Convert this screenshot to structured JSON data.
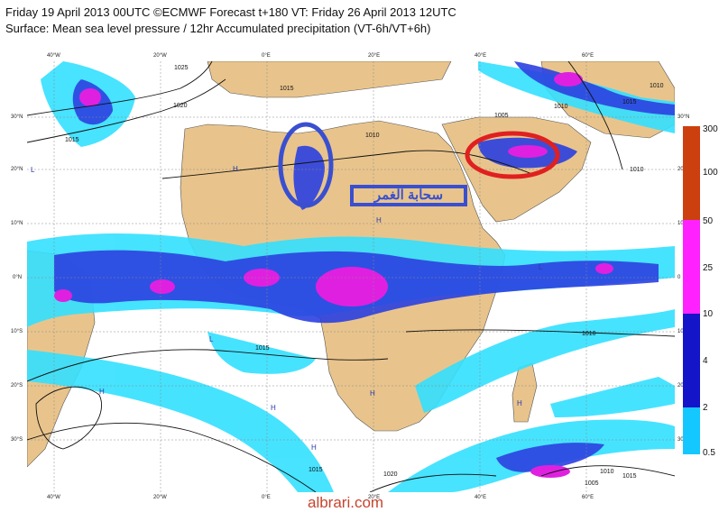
{
  "header": {
    "line1": "Friday 19 April 2013 00UTC ©ECMWF Forecast t+180 VT: Friday 26 April 2013 12UTC",
    "line2": "Surface: Mean sea level pressure / 12hr Accumulated precipitation (VT-6h/VT+6h)"
  },
  "lon_top": [
    "40°W",
    "20°W",
    "0°E",
    "20°E",
    "40°E",
    "60°E"
  ],
  "lon_bottom": [
    "40°W",
    "20°W",
    "0°E",
    "20°E",
    "40°E",
    "60°E"
  ],
  "lat_left": [
    "30°N",
    "20°N",
    "10°N",
    "0°N",
    "10°S",
    "20°S",
    "30°S"
  ],
  "lat_right": [
    "30°N",
    "20",
    "10",
    "0",
    "10",
    "20",
    "30"
  ],
  "isobars": [
    "1025",
    "1020",
    "1015",
    "1015",
    "1010",
    "1010",
    "1005",
    "1010",
    "1015",
    "1010",
    "1010",
    "1015",
    "1015",
    "1020",
    "1010",
    "1005",
    "1015"
  ],
  "highs_lows": [
    "L",
    "H",
    "H",
    "H",
    "H",
    "L",
    "H",
    "H",
    "H",
    "L"
  ],
  "legend": {
    "labels": [
      "300",
      "100",
      "50",
      "25",
      "10",
      "4",
      "2",
      "0.5"
    ],
    "colors": [
      "#cc4010",
      "#cc4010",
      "#ff22ff",
      "#ff22ff",
      "#1414c8",
      "#1414c8",
      "#14c8ff",
      "#14c8ff"
    ]
  },
  "annotation": {
    "arabic_text": "سحابة الغمر"
  },
  "watermark": "albrari.com",
  "colors": {
    "sea": "#ffffff",
    "land": "#e8c48c",
    "precip_cyan": "#33e0ff",
    "precip_blue": "#2b40e0",
    "precip_magenta": "#e020e0",
    "annotation_blue": "#3a4fd0",
    "annotation_red": "#e02020"
  }
}
